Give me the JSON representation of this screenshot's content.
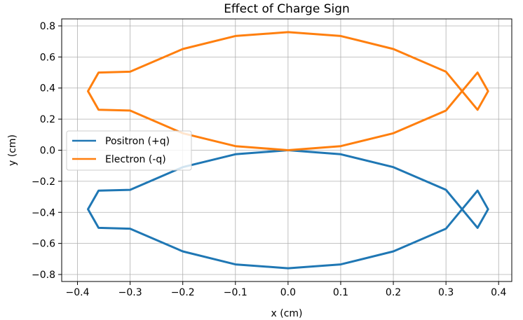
{
  "chart_data": {
    "type": "line",
    "title": "Effect of Charge Sign",
    "xlabel": "x (cm)",
    "ylabel": "y (cm)",
    "xlim": [
      -0.43,
      0.425
    ],
    "ylim": [
      -0.845,
      0.845
    ],
    "xticks": [
      -0.4,
      -0.3,
      -0.2,
      -0.1,
      0.0,
      0.1,
      0.2,
      0.3,
      0.4
    ],
    "xtick_labels": [
      "−0.4",
      "−0.3",
      "−0.2",
      "−0.1",
      "0.0",
      "0.1",
      "0.2",
      "0.3",
      "0.4"
    ],
    "yticks": [
      -0.8,
      -0.6,
      -0.4,
      -0.2,
      0.0,
      0.2,
      0.4,
      0.6,
      0.8
    ],
    "ytick_labels": [
      "−0.8",
      "−0.6",
      "−0.4",
      "−0.2",
      "0.0",
      "0.2",
      "0.4",
      "0.6",
      "0.8"
    ],
    "grid": true,
    "legend_position": "center-left",
    "series": [
      {
        "name": "Positron (+q)",
        "color": "#1f77b4",
        "x": [
          0.0,
          0.1,
          0.2,
          0.3,
          0.36,
          0.38,
          0.36,
          0.3,
          0.2,
          0.1,
          0.0,
          -0.1,
          -0.2,
          -0.3,
          -0.36,
          -0.38,
          -0.36,
          -0.3,
          -0.2,
          -0.1,
          0.0
        ],
        "y": [
          0.0,
          -0.026,
          -0.109,
          -0.255,
          -0.5,
          -0.38,
          -0.26,
          -0.505,
          -0.651,
          -0.735,
          -0.76,
          -0.735,
          -0.651,
          -0.505,
          -0.5,
          -0.38,
          -0.26,
          -0.255,
          -0.109,
          -0.026,
          0.0
        ]
      },
      {
        "name": "Electron (-q)",
        "color": "#ff7f0e",
        "x": [
          0.0,
          0.1,
          0.2,
          0.3,
          0.36,
          0.38,
          0.36,
          0.3,
          0.2,
          0.1,
          0.0,
          -0.1,
          -0.2,
          -0.3,
          -0.36,
          -0.38,
          -0.36,
          -0.3,
          -0.2,
          -0.1,
          0.0
        ],
        "y": [
          0.0,
          0.026,
          0.109,
          0.255,
          0.5,
          0.38,
          0.26,
          0.505,
          0.651,
          0.735,
          0.76,
          0.735,
          0.651,
          0.505,
          0.5,
          0.38,
          0.26,
          0.255,
          0.109,
          0.026,
          0.0
        ]
      }
    ]
  }
}
